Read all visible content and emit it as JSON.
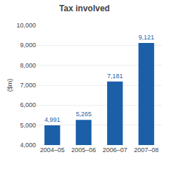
{
  "chart_data": {
    "type": "bar",
    "title": "Tax involved",
    "ylabel": "($m)",
    "categories": [
      "2004–05",
      "2005–06",
      "2006–07",
      "2007–08"
    ],
    "values": [
      4991,
      5265,
      7181,
      9121
    ],
    "value_labels": [
      "4,991",
      "5,265",
      "7,181",
      "9,121"
    ],
    "data_labels": true,
    "color": "#1a5fa8",
    "ylim": [
      4000,
      10000
    ],
    "yticks": [
      {
        "value": 4000,
        "label": "4,000"
      },
      {
        "value": 5000,
        "label": "5,000"
      },
      {
        "value": 6000,
        "label": "6,000"
      },
      {
        "value": 7000,
        "label": "7,000"
      },
      {
        "value": 8000,
        "label": "8,000"
      },
      {
        "value": 9000,
        "label": "9,000"
      },
      {
        "value": 10000,
        "label": "10,000"
      }
    ],
    "grid": true
  }
}
